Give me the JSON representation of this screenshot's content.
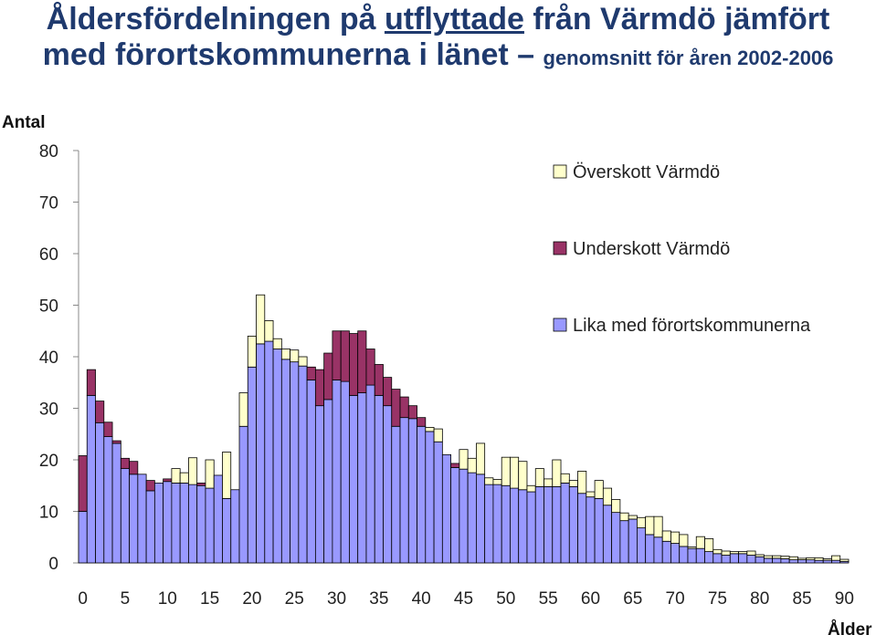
{
  "title": {
    "line1_a": "Åldersfördelningen på ",
    "line1_u": "utflyttade",
    "line1_b": " från Värmdö jämfört",
    "line2_a": "med förortskommunerna i länet – ",
    "line2_sub": "genomsnitt för åren 2002-2006"
  },
  "colors": {
    "base": "#9999FF",
    "deficit": "#993366",
    "surplus": "#FFFFCC",
    "outline": "#000000"
  },
  "chart_data": {
    "type": "bar",
    "stacked": true,
    "ylabel": "Antal",
    "xlabel": "Ålder",
    "ylim": [
      0,
      80
    ],
    "yticks": [
      0,
      10,
      20,
      30,
      40,
      50,
      60,
      70,
      80
    ],
    "xticks": [
      0,
      5,
      10,
      15,
      20,
      25,
      30,
      35,
      40,
      45,
      50,
      55,
      60,
      65,
      70,
      75,
      80,
      85,
      90
    ],
    "x": [
      0,
      1,
      2,
      3,
      4,
      5,
      6,
      7,
      8,
      9,
      10,
      11,
      12,
      13,
      14,
      15,
      16,
      17,
      18,
      19,
      20,
      21,
      22,
      23,
      24,
      25,
      26,
      27,
      28,
      29,
      30,
      31,
      32,
      33,
      34,
      35,
      36,
      37,
      38,
      39,
      40,
      41,
      42,
      43,
      44,
      45,
      46,
      47,
      48,
      49,
      50,
      51,
      52,
      53,
      54,
      55,
      56,
      57,
      58,
      59,
      60,
      61,
      62,
      63,
      64,
      65,
      66,
      67,
      68,
      69,
      70,
      71,
      72,
      73,
      74,
      75,
      76,
      77,
      78,
      79,
      80,
      81,
      82,
      83,
      84,
      85,
      86,
      87,
      88,
      89,
      90
    ],
    "legend": {
      "placement": "top-right"
    },
    "series": [
      {
        "name": "Lika med förortskommunerna",
        "color": "#9999FF",
        "values": [
          10,
          32.5,
          27.2,
          24.5,
          23.2,
          18.3,
          17.2,
          17.2,
          14,
          15.5,
          15.8,
          15.5,
          15.5,
          15.2,
          15,
          14.5,
          17,
          12.5,
          14.2,
          26.5,
          38,
          42.5,
          43,
          41.5,
          39.5,
          39,
          38.2,
          35.5,
          30.5,
          31.7,
          35.5,
          35.2,
          32.5,
          33,
          34.5,
          32.5,
          30.5,
          26.5,
          28.2,
          28,
          26.5,
          25.5,
          23.5,
          21,
          18.5,
          18.2,
          17.5,
          17.2,
          15.2,
          15.2,
          15,
          14.5,
          14.2,
          13.8,
          14.8,
          14.8,
          14.8,
          15.5,
          14.8,
          13.5,
          12.8,
          12.5,
          11.2,
          9.8,
          8.2,
          8.5,
          6.8,
          5.5,
          5,
          4.2,
          3.8,
          3.2,
          2.8,
          2.8,
          2.2,
          1.8,
          1.5,
          1.8,
          1.8,
          1.5,
          1.2,
          0.9,
          0.9,
          0.8,
          0.6,
          0.6,
          0.6,
          0.5,
          0.5,
          0.5,
          0.3
        ]
      },
      {
        "name": "Underskott Värmdö",
        "color": "#993366",
        "values": [
          10.8,
          5,
          4.2,
          2.8,
          0.5,
          2,
          2.5,
          0,
          2,
          0,
          0.5,
          0,
          0,
          0,
          0.5,
          0,
          0,
          0,
          0,
          0,
          0,
          0,
          0,
          0,
          0,
          0,
          0,
          2.5,
          7,
          9,
          9.5,
          9.8,
          12,
          12,
          7,
          6,
          5.5,
          7.2,
          4,
          2.5,
          1.7,
          0,
          0,
          0,
          0.8,
          0,
          0,
          0,
          0,
          0,
          0,
          0,
          0,
          0,
          0,
          0,
          0,
          0,
          0,
          0,
          0,
          0,
          0,
          0,
          0,
          0,
          0,
          0,
          0,
          0,
          0,
          0,
          0,
          0,
          0,
          0,
          0,
          0,
          0,
          0,
          0,
          0,
          0,
          0,
          0,
          0,
          0,
          0,
          0,
          0,
          0
        ]
      },
      {
        "name": "Överskott Värmdö",
        "color": "#FFFFCC",
        "values": [
          0,
          0,
          0,
          0,
          0,
          0,
          0,
          0,
          0,
          0,
          0,
          2.8,
          2,
          5.2,
          0,
          5.5,
          0,
          9,
          0,
          6.5,
          6,
          9.5,
          4,
          2,
          2,
          2.3,
          1.8,
          0,
          0,
          0,
          0,
          0,
          0,
          0,
          0,
          0,
          0,
          0,
          0,
          0,
          0,
          0.8,
          2.5,
          0,
          0,
          3.8,
          2.8,
          6,
          1.3,
          1,
          5.5,
          6,
          5.5,
          1.2,
          3.5,
          1.5,
          5.2,
          1.8,
          1.2,
          4.3,
          1,
          3.5,
          3.3,
          2.5,
          1.5,
          0.7,
          2,
          3.5,
          4,
          2,
          2.2,
          2.3,
          0.3,
          2.3,
          2.5,
          0.8,
          0.8,
          0.4,
          0.4,
          0.8,
          0.4,
          0.5,
          0.5,
          0.5,
          0.6,
          0.3,
          0.4,
          0.5,
          0.3,
          0.9,
          0.4
        ]
      }
    ]
  }
}
